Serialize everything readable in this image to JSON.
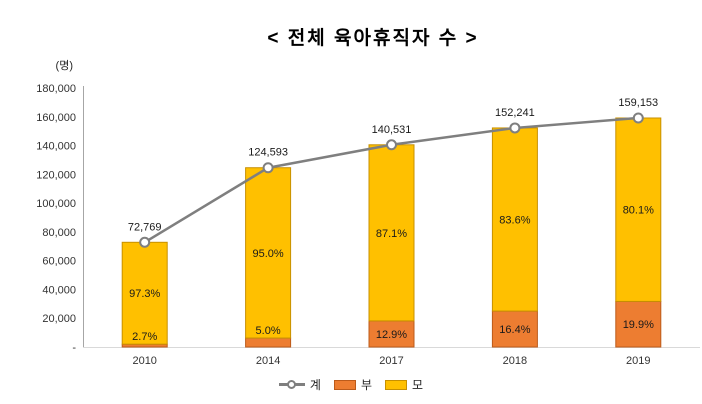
{
  "title": "< 전체 육아휴직자 수 >",
  "axis_unit": "(명)",
  "colors": {
    "total_line": "#7F7F7F",
    "father_fill": "#ED7D31",
    "father_border": "#BC5B1B",
    "mother_fill": "#FFC000",
    "mother_border": "#C79000",
    "axis_line": "#A6A6A6",
    "baseline": "#D9D9D9",
    "tick_text": "#333333",
    "label_text": "#1A1A1A"
  },
  "legend": [
    {
      "key": "total",
      "label": "계",
      "type": "line-marker",
      "color": "#7F7F7F",
      "border": "#7F7F7F"
    },
    {
      "key": "father",
      "label": "부",
      "type": "box",
      "color": "#ED7D31",
      "border": "#BC5B1B"
    },
    {
      "key": "mother",
      "label": "모",
      "type": "box",
      "color": "#FFC000",
      "border": "#C79000"
    }
  ],
  "chart_data": {
    "type": "bar",
    "subtype": "stacked-bar-with-line",
    "title": "< 전체 육아휴직자 수 >",
    "xlabel": "",
    "ylabel": "(명)",
    "categories": [
      "2010",
      "2014",
      "2017",
      "2018",
      "2019"
    ],
    "series": [
      {
        "name": "계",
        "type": "line",
        "color": "#7F7F7F",
        "values": [
          72769,
          124593,
          140531,
          152241,
          159153
        ],
        "labels": [
          "72,769",
          "124,593",
          "140,531",
          "152,241",
          "159,153"
        ]
      },
      {
        "name": "부",
        "type": "bar-segment-bottom",
        "color": "#ED7D31",
        "border": "#BC5B1B",
        "pct": [
          2.7,
          5.0,
          12.9,
          16.4,
          19.9
        ],
        "labels": [
          "2.7%",
          "5.0%",
          "12.9%",
          "16.4%",
          "19.9%"
        ]
      },
      {
        "name": "모",
        "type": "bar-segment-top",
        "color": "#FFC000",
        "border": "#C79000",
        "pct": [
          97.3,
          95.0,
          87.1,
          83.6,
          80.1
        ],
        "labels": [
          "97.3%",
          "95.0%",
          "87.1%",
          "83.6%",
          "80.1%"
        ]
      }
    ],
    "y_ticks": [
      "180,000",
      "160,000",
      "140,000",
      "120,000",
      "100,000",
      "80,000",
      "60,000",
      "40,000",
      "20,000",
      "-"
    ],
    "ylim": [
      0,
      180000
    ],
    "grid": false,
    "legend_position": "bottom"
  }
}
